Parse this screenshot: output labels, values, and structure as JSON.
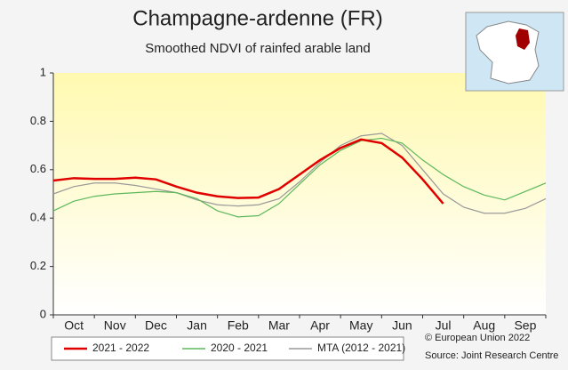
{
  "chart_data": {
    "type": "line",
    "title": "Champagne-ardenne (FR)",
    "subtitle": "Smoothed NDVI of rainfed arable land",
    "categories": [
      null,
      "Oct",
      null,
      "Nov",
      null,
      "Dec",
      null,
      "Jan",
      null,
      "Feb",
      null,
      "Mar",
      null,
      "Apr",
      null,
      "May",
      null,
      "Jun",
      null,
      "Jul",
      null,
      "Aug",
      null,
      "Sep",
      null
    ],
    "series": [
      {
        "name": "2021 - 2022",
        "color": "#e00000",
        "values": [
          0.555,
          0.565,
          0.562,
          0.562,
          0.567,
          0.56,
          0.53,
          0.505,
          0.49,
          0.483,
          0.485,
          0.52,
          0.58,
          0.64,
          0.69,
          0.725,
          0.71,
          0.65,
          0.56,
          0.46,
          null,
          null,
          null,
          null,
          null
        ]
      },
      {
        "name": "2020 - 2021",
        "color": "#5cb85c",
        "values": [
          0.43,
          0.47,
          0.49,
          0.5,
          0.505,
          0.51,
          0.505,
          0.48,
          0.43,
          0.405,
          0.41,
          0.46,
          0.54,
          0.62,
          0.68,
          0.72,
          0.73,
          0.71,
          0.64,
          0.58,
          0.53,
          0.495,
          0.475,
          0.51,
          0.545
        ]
      },
      {
        "name": "MTA (2012 - 2021)",
        "color": "#999999",
        "values": [
          0.5,
          0.53,
          0.545,
          0.545,
          0.535,
          0.52,
          0.505,
          0.475,
          0.455,
          0.45,
          0.455,
          0.48,
          0.55,
          0.63,
          0.7,
          0.74,
          0.75,
          0.7,
          0.6,
          0.5,
          0.445,
          0.42,
          0.42,
          0.44,
          0.48
        ]
      }
    ],
    "ylim": [
      0,
      1
    ],
    "yticks": [
      0,
      0.2,
      0.4,
      0.6,
      0.8,
      1
    ],
    "copyright": "© European Union 2022",
    "source": "Source: Joint Research Centre"
  }
}
